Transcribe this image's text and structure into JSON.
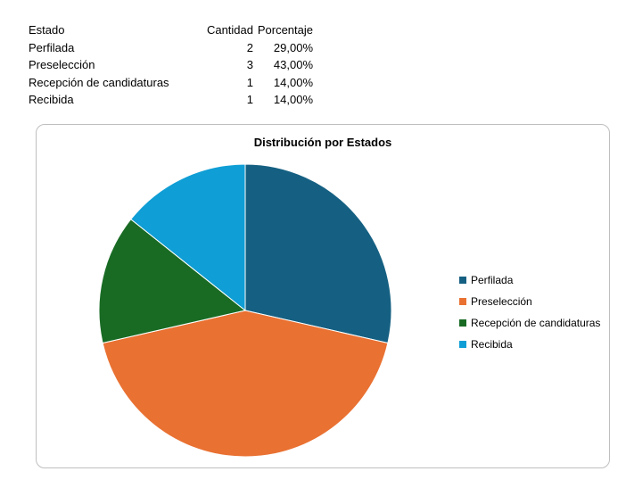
{
  "table": {
    "headers": [
      "Estado",
      "Cantidad",
      "Porcentaje"
    ],
    "rows": [
      {
        "estado": "Perfilada",
        "cantidad": "2",
        "porcentaje": "29,00%"
      },
      {
        "estado": "Preselección",
        "cantidad": "3",
        "porcentaje": "43,00%"
      },
      {
        "estado": "Recepción de candidaturas",
        "cantidad": "1",
        "porcentaje": "14,00%"
      },
      {
        "estado": "Recibida",
        "cantidad": "1",
        "porcentaje": "14,00%"
      }
    ]
  },
  "chart_data": {
    "type": "pie",
    "title": "Distribución por Estados",
    "categories": [
      "Perfilada",
      "Preselección",
      "Recepción de candidaturas",
      "Recibida"
    ],
    "values": [
      2,
      3,
      1,
      1
    ],
    "colors": [
      "#156082",
      "#E97132",
      "#196B24",
      "#0F9ED5"
    ],
    "legend_position": "right",
    "start_angle": "12 o'clock",
    "direction": "clockwise"
  }
}
